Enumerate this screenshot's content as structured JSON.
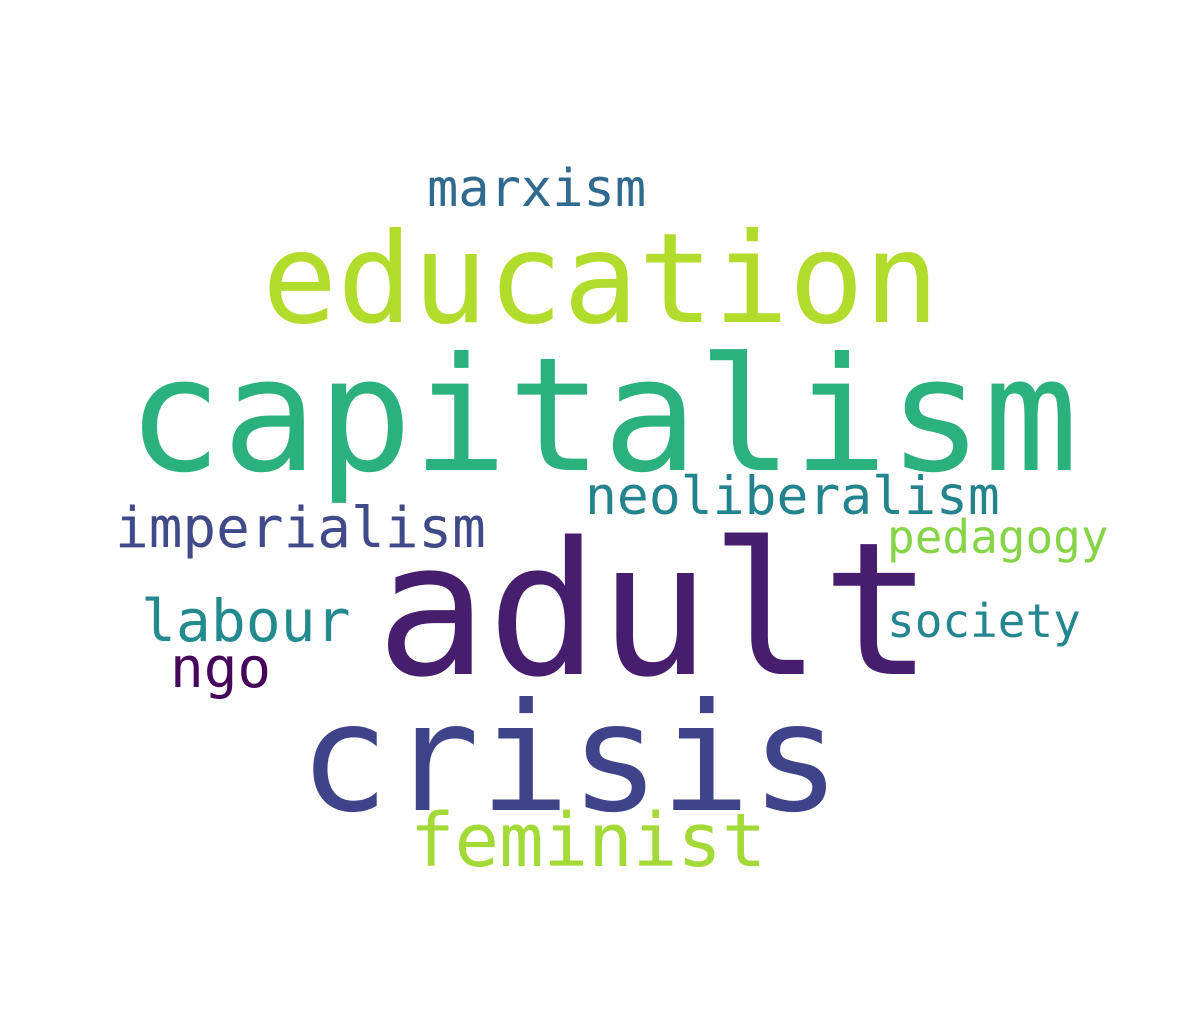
{
  "words": [
    {
      "id": "capitalism",
      "text": "capitalism",
      "color": "#2bb17e"
    },
    {
      "id": "adult",
      "text": "adult",
      "color": "#471d6e"
    },
    {
      "id": "education",
      "text": "education",
      "color": "#b2dc2c"
    },
    {
      "id": "crisis",
      "text": "crisis",
      "color": "#3f4389"
    },
    {
      "id": "feminist",
      "text": "feminist",
      "color": "#a3da37"
    },
    {
      "id": "marxism",
      "text": "marxism",
      "color": "#306a8e"
    },
    {
      "id": "neoliberalism",
      "text": "neoliberalism",
      "color": "#23848d"
    },
    {
      "id": "imperialism",
      "text": "imperialism",
      "color": "#404a89"
    },
    {
      "id": "pedagogy",
      "text": "pedagogy",
      "color": "#86d549"
    },
    {
      "id": "labour",
      "text": "labour",
      "color": "#238a8d"
    },
    {
      "id": "society",
      "text": "society",
      "color": "#24868e"
    },
    {
      "id": "ngo",
      "text": "ngo",
      "color": "#46065b"
    }
  ]
}
